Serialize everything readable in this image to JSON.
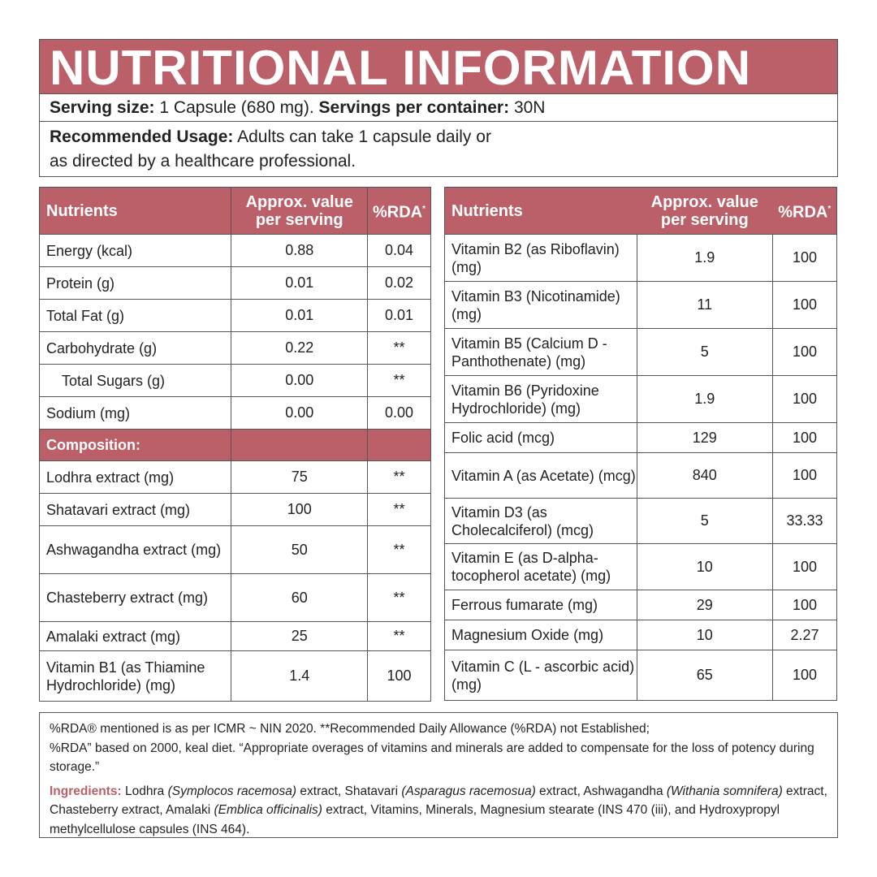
{
  "title": "NUTRITIONAL INFORMATION",
  "serving": {
    "label": "Serving size:",
    "value": "1 Capsule (680 mg).",
    "per_label": "Servings per container:",
    "per_value": "30N"
  },
  "usage": {
    "label": "Recommended Usage:",
    "text": "Adults can take 1 capsule daily or",
    "text2": "as directed by a healthcare professional."
  },
  "headers": {
    "nutrients": "Nutrients",
    "value": "Approx. value per serving",
    "rda": "%RDA",
    "rda_mark": "*"
  },
  "left_rows": [
    {
      "name": "Energy (kcal)",
      "value": "0.88",
      "rda": "0.04"
    },
    {
      "name": "Protein (g)",
      "value": "0.01",
      "rda": "0.02"
    },
    {
      "name": "Total Fat (g)",
      "value": "0.01",
      "rda": "0.01"
    },
    {
      "name": "Carbohydrate (g)",
      "value": "0.22",
      "rda": "**"
    },
    {
      "name": "Total Sugars (g)",
      "value": "0.00",
      "rda": "**"
    },
    {
      "name": "Sodium (mg)",
      "value": "0.00",
      "rda": "0.00"
    }
  ],
  "composition_label": "Composition:",
  "composition_rows": [
    {
      "name": "Lodhra extract (mg)",
      "value": "75",
      "rda": "**"
    },
    {
      "name": "Shatavari extract (mg)",
      "value": "100",
      "rda": "**"
    },
    {
      "name": "Ashwagandha extract (mg)",
      "value": "50",
      "rda": "**"
    },
    {
      "name": "Chasteberry extract (mg)",
      "value": "60",
      "rda": "**"
    },
    {
      "name": "Amalaki extract (mg)",
      "value": "25",
      "rda": "**"
    },
    {
      "name": "Vitamin B1 (as Thiamine Hydrochloride) (mg)",
      "value": "1.4",
      "rda": "100"
    }
  ],
  "right_rows": [
    {
      "name": "Vitamin B2 (as Riboflavin) (mg)",
      "value": "1.9",
      "rda": "100"
    },
    {
      "name": "Vitamin B3 (Nicotinamide) (mg)",
      "value": "11",
      "rda": "100"
    },
    {
      "name": "Vitamin B5 (Calcium D - Panthothenate) (mg)",
      "value": "5",
      "rda": "100"
    },
    {
      "name": "Vitamin B6 (Pyridoxine Hydrochloride) (mg)",
      "value": "1.9",
      "rda": "100"
    },
    {
      "name": "Folic acid (mcg)",
      "value": "129",
      "rda": "100"
    },
    {
      "name": "Vitamin A (as Acetate) (mcg)",
      "value": "840",
      "rda": "100"
    },
    {
      "name": "Vitamin D3 (as Cholecalciferol) (mcg)",
      "value": "5",
      "rda": "33.33"
    },
    {
      "name": "Vitamin E (as D-alpha-tocopherol acetate) (mg)",
      "value": "10",
      "rda": "100"
    },
    {
      "name": "Ferrous fumarate (mg)",
      "value": "29",
      "rda": "100"
    },
    {
      "name": "Magnesium Oxide (mg)",
      "value": "10",
      "rda": "2.27"
    },
    {
      "name": "Vitamin C (L - ascorbic acid) (mg)",
      "value": "65",
      "rda": "100"
    }
  ],
  "footer": {
    "note1": "%RDA® mentioned is as per ICMR ~ NIN 2020. **Recommended Daily Allowance (%RDA) not Established;",
    "note2": "%RDA” based on 2000, keal diet. “Appropriate overages of vitamins and minerals are added to compensate for the loss of potency during storage.”",
    "ingredients_label": "Ingredients:",
    "ingredients": [
      {
        "t": " Lodhra "
      },
      {
        "t": "(Symplocos racemosa)",
        "i": true
      },
      {
        "t": " extract, Shatavari "
      },
      {
        "t": "(Asparagus racemosua)",
        "i": true
      },
      {
        "t": " extract, Ashwagandha "
      },
      {
        "t": "(Withania somnifera)",
        "i": true
      },
      {
        "t": " extract, Chasteberry extract, Amalaki "
      },
      {
        "t": "(Emblica officinalis)",
        "i": true
      },
      {
        "t": " extract, Vitamins, Minerals, Magnesium stearate (INS 470 (iii), and Hydroxypropyl methylcellulose capsules (INS 464)."
      }
    ]
  },
  "colors": {
    "accent": "#bb6068"
  }
}
